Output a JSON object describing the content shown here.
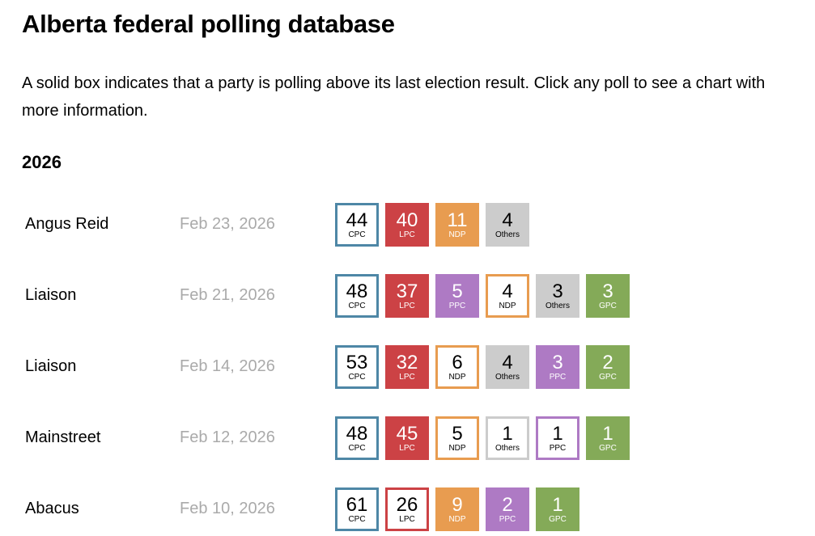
{
  "title": "Alberta federal polling database",
  "intro": "A solid box indicates that a party is polling above its last election result. Click any poll to see a chart with more information.",
  "year": "2026",
  "colors": {
    "CPC": "#4e87a6",
    "LPC": "#cc4245",
    "NDP": "#e89c50",
    "PPC": "#ae7ac4",
    "GPC": "#84aa58",
    "Others": "#cccccc"
  },
  "polls": [
    {
      "pollster": "Angus Reid",
      "date": "Feb 23, 2026",
      "results": [
        {
          "party": "CPC",
          "value": "44",
          "solid": false
        },
        {
          "party": "LPC",
          "value": "40",
          "solid": true
        },
        {
          "party": "NDP",
          "value": "11",
          "solid": true
        },
        {
          "party": "Others",
          "value": "4",
          "solid": true
        }
      ]
    },
    {
      "pollster": "Liaison",
      "date": "Feb 21, 2026",
      "results": [
        {
          "party": "CPC",
          "value": "48",
          "solid": false
        },
        {
          "party": "LPC",
          "value": "37",
          "solid": true
        },
        {
          "party": "PPC",
          "value": "5",
          "solid": true
        },
        {
          "party": "NDP",
          "value": "4",
          "solid": false
        },
        {
          "party": "Others",
          "value": "3",
          "solid": true
        },
        {
          "party": "GPC",
          "value": "3",
          "solid": true
        }
      ]
    },
    {
      "pollster": "Liaison",
      "date": "Feb 14, 2026",
      "results": [
        {
          "party": "CPC",
          "value": "53",
          "solid": false
        },
        {
          "party": "LPC",
          "value": "32",
          "solid": true
        },
        {
          "party": "NDP",
          "value": "6",
          "solid": false
        },
        {
          "party": "Others",
          "value": "4",
          "solid": true
        },
        {
          "party": "PPC",
          "value": "3",
          "solid": true
        },
        {
          "party": "GPC",
          "value": "2",
          "solid": true
        }
      ]
    },
    {
      "pollster": "Mainstreet",
      "date": "Feb 12, 2026",
      "results": [
        {
          "party": "CPC",
          "value": "48",
          "solid": false
        },
        {
          "party": "LPC",
          "value": "45",
          "solid": true
        },
        {
          "party": "NDP",
          "value": "5",
          "solid": false
        },
        {
          "party": "Others",
          "value": "1",
          "solid": false
        },
        {
          "party": "PPC",
          "value": "1",
          "solid": false
        },
        {
          "party": "GPC",
          "value": "1",
          "solid": true
        }
      ]
    },
    {
      "pollster": "Abacus",
      "date": "Feb 10, 2026",
      "results": [
        {
          "party": "CPC",
          "value": "61",
          "solid": false
        },
        {
          "party": "LPC",
          "value": "26",
          "solid": false
        },
        {
          "party": "NDP",
          "value": "9",
          "solid": true
        },
        {
          "party": "PPC",
          "value": "2",
          "solid": true
        },
        {
          "party": "GPC",
          "value": "1",
          "solid": true
        }
      ]
    }
  ]
}
